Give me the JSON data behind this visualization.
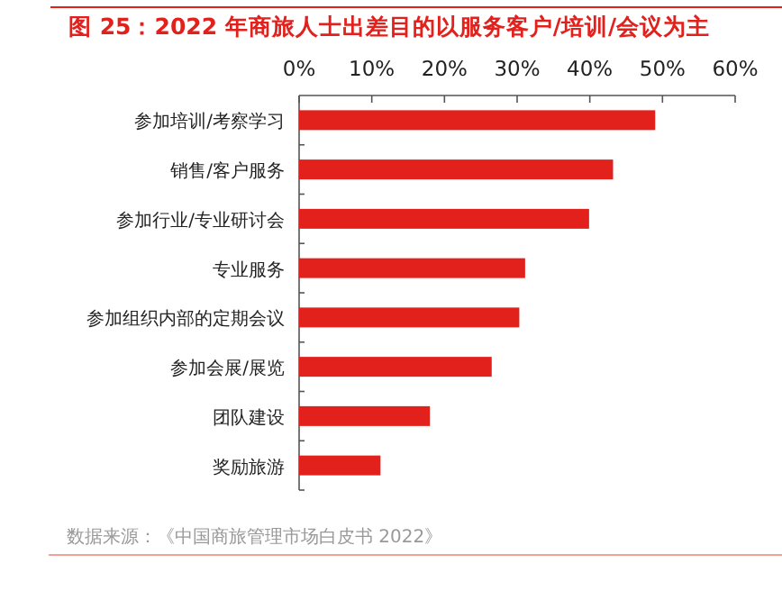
{
  "chart_data": {
    "type": "bar",
    "orientation": "horizontal",
    "title": "图 25：2022 年商旅人士出差目的以服务客户/培训/会议为主",
    "categories": [
      "参加培训/考察学习",
      "销售/客户服务",
      "参加行业/专业研讨会",
      "专业服务",
      "参加组织内部的定期会议",
      "参加会展/展览",
      "团队建设",
      "奖励旅游"
    ],
    "values": [
      49.0,
      43.2,
      39.9,
      31.1,
      30.3,
      26.5,
      18.0,
      11.2
    ],
    "color": "#e3211c",
    "xlim": [
      0,
      60
    ],
    "xticks": [
      {
        "value": 0,
        "label": "0%"
      },
      {
        "value": 10,
        "label": "10%"
      },
      {
        "value": 20,
        "label": "20%"
      },
      {
        "value": 30,
        "label": "30%"
      },
      {
        "value": 40,
        "label": "40%"
      },
      {
        "value": 50,
        "label": "50%"
      },
      {
        "value": 60,
        "label": "60%"
      }
    ],
    "grid": false,
    "annotations": [
      "数据来源：《中国商旅管理市场白皮书 2022》"
    ]
  }
}
